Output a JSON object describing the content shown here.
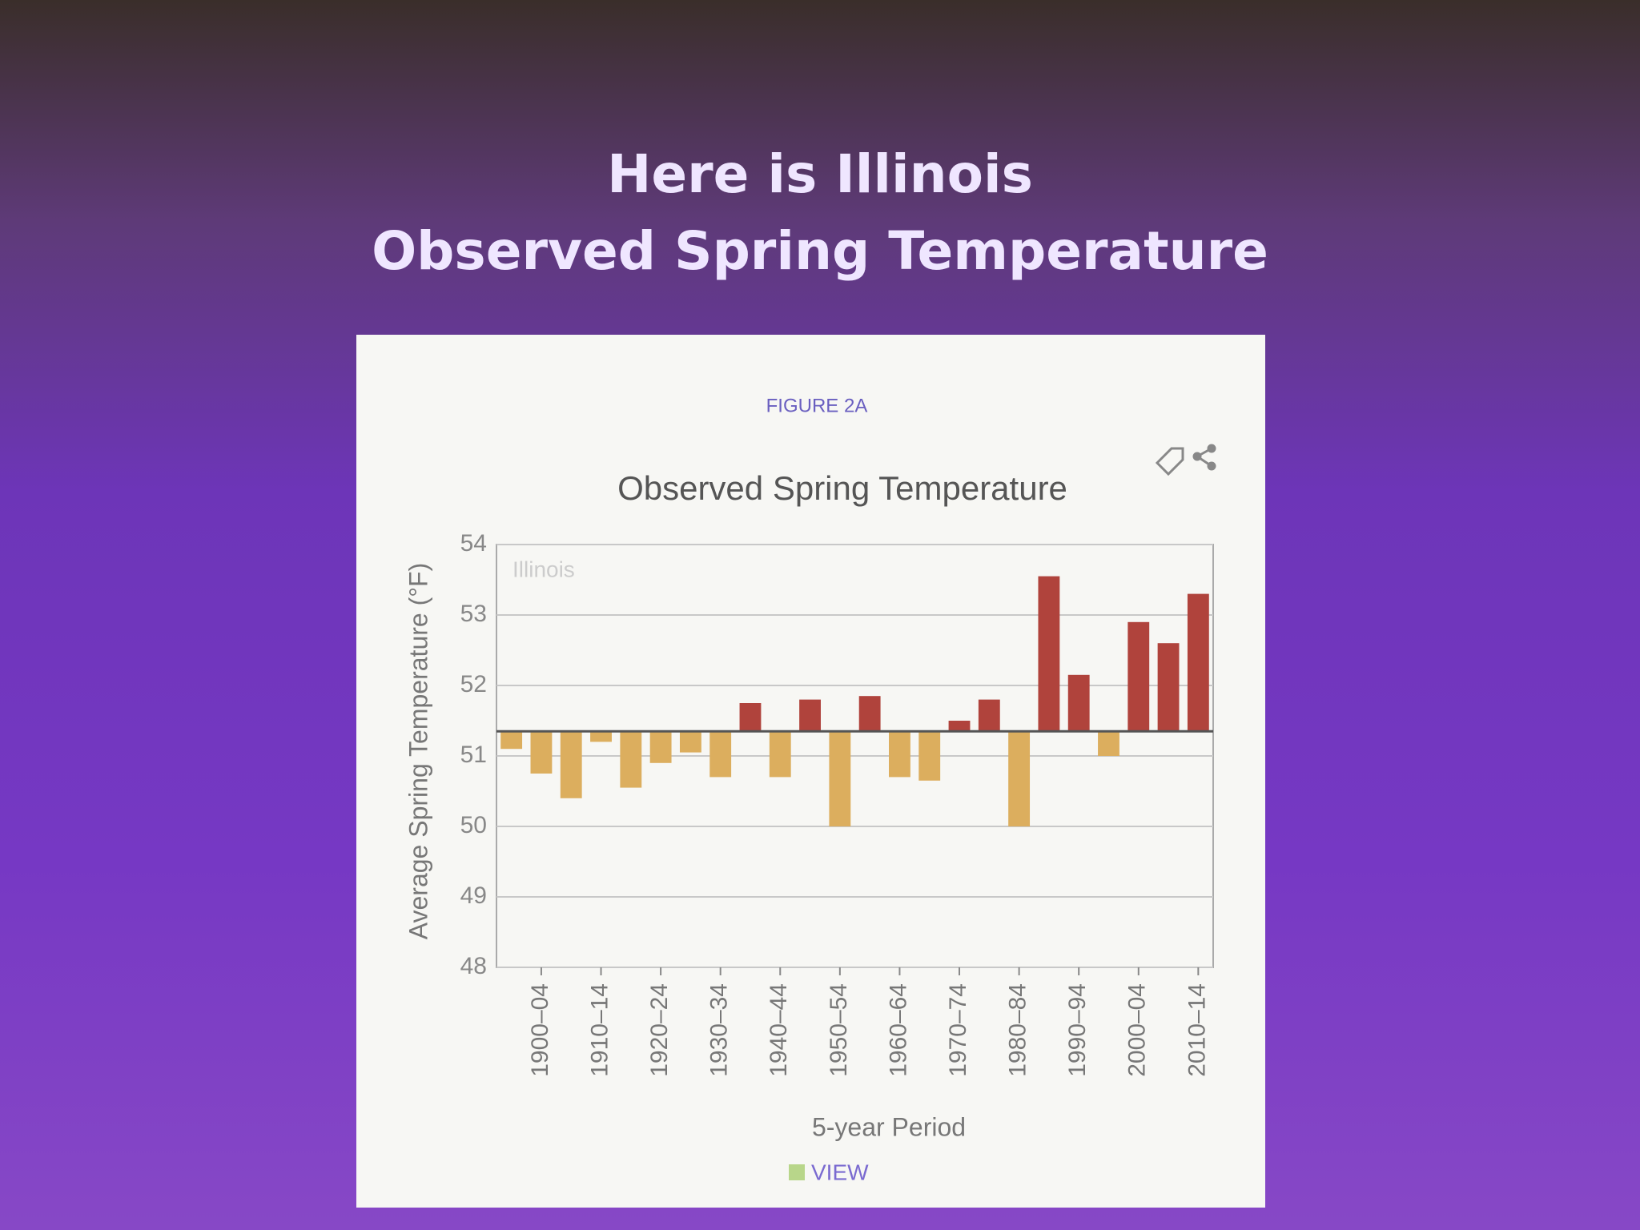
{
  "slide": {
    "title_lines": [
      "Here is Illinois",
      "Observed Spring Temperature"
    ]
  },
  "figure_label": "FIGURE 2A",
  "view_label": "VIEW",
  "chart_data": {
    "type": "bar",
    "title": "Observed Spring Temperature",
    "annotation": "Illinois",
    "y_label": "Average Spring Temperature (°F)",
    "x_label": "5-year Period",
    "categories": [
      null,
      "1900–04",
      null,
      "1910–14",
      null,
      "1920–24",
      null,
      "1930–34",
      null,
      "1940–44",
      null,
      "1950–54",
      null,
      "1960–64",
      null,
      "1970–74",
      null,
      "1980–84",
      null,
      "1990–94",
      null,
      "2000–04",
      null,
      "2010–14"
    ],
    "values": [
      51.1,
      50.75,
      50.4,
      51.2,
      50.55,
      50.9,
      51.05,
      50.7,
      51.75,
      50.7,
      51.8,
      50.0,
      51.85,
      50.7,
      50.65,
      51.5,
      51.8,
      50.0,
      53.55,
      52.15,
      51.0,
      52.9,
      52.6,
      53.3
    ],
    "base": 51.35,
    "colors": {
      "above": "#b0433c",
      "below": "#dcae5e"
    },
    "ylim": [
      48,
      54
    ],
    "yticks": [
      48,
      49,
      50,
      51,
      52,
      53,
      54
    ],
    "grid": true
  }
}
